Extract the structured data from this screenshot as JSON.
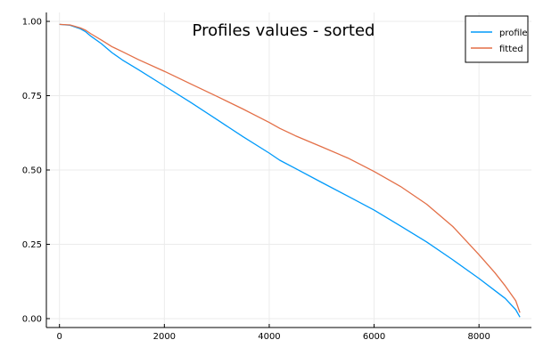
{
  "chart_data": {
    "type": "line",
    "title": "Profiles values - sorted",
    "xlabel": "",
    "ylabel": "",
    "xlim": [
      -250,
      9000
    ],
    "ylim": [
      -0.03,
      1.03
    ],
    "xticks": [
      0,
      2000,
      4000,
      6000,
      8000
    ],
    "xtick_labels": [
      "0",
      "2000",
      "4000",
      "6000",
      "8000"
    ],
    "yticks": [
      0.0,
      0.25,
      0.5,
      0.75,
      1.0
    ],
    "ytick_labels": [
      "0.00",
      "0.25",
      "0.50",
      "0.75",
      "1.00"
    ],
    "grid": true,
    "legend_position": "top-right",
    "series": [
      {
        "name": "profile",
        "color": "#009AFA",
        "x": [
          0,
          200,
          400,
          500,
          600,
          800,
          1000,
          1200,
          1500,
          2000,
          2500,
          3000,
          3500,
          4000,
          4200,
          4500,
          5000,
          5500,
          6000,
          6500,
          7000,
          7500,
          8000,
          8300,
          8500,
          8700,
          8780
        ],
        "y": [
          0.99,
          0.987,
          0.975,
          0.965,
          0.95,
          0.925,
          0.895,
          0.87,
          0.838,
          0.783,
          0.728,
          0.67,
          0.612,
          0.557,
          0.533,
          0.505,
          0.458,
          0.412,
          0.365,
          0.312,
          0.258,
          0.198,
          0.135,
          0.095,
          0.068,
          0.03,
          0.005
        ]
      },
      {
        "name": "fitted",
        "color": "#E36F47",
        "x": [
          0,
          200,
          400,
          500,
          600,
          800,
          1000,
          1200,
          1500,
          2000,
          2500,
          3000,
          3500,
          4000,
          4200,
          4500,
          5000,
          5500,
          6000,
          6500,
          7000,
          7500,
          8000,
          8300,
          8500,
          8700,
          8780
        ],
        "y": [
          0.99,
          0.988,
          0.978,
          0.97,
          0.958,
          0.937,
          0.915,
          0.898,
          0.872,
          0.832,
          0.79,
          0.748,
          0.705,
          0.66,
          0.64,
          0.615,
          0.578,
          0.54,
          0.495,
          0.445,
          0.385,
          0.31,
          0.215,
          0.155,
          0.11,
          0.06,
          0.02
        ]
      }
    ]
  }
}
